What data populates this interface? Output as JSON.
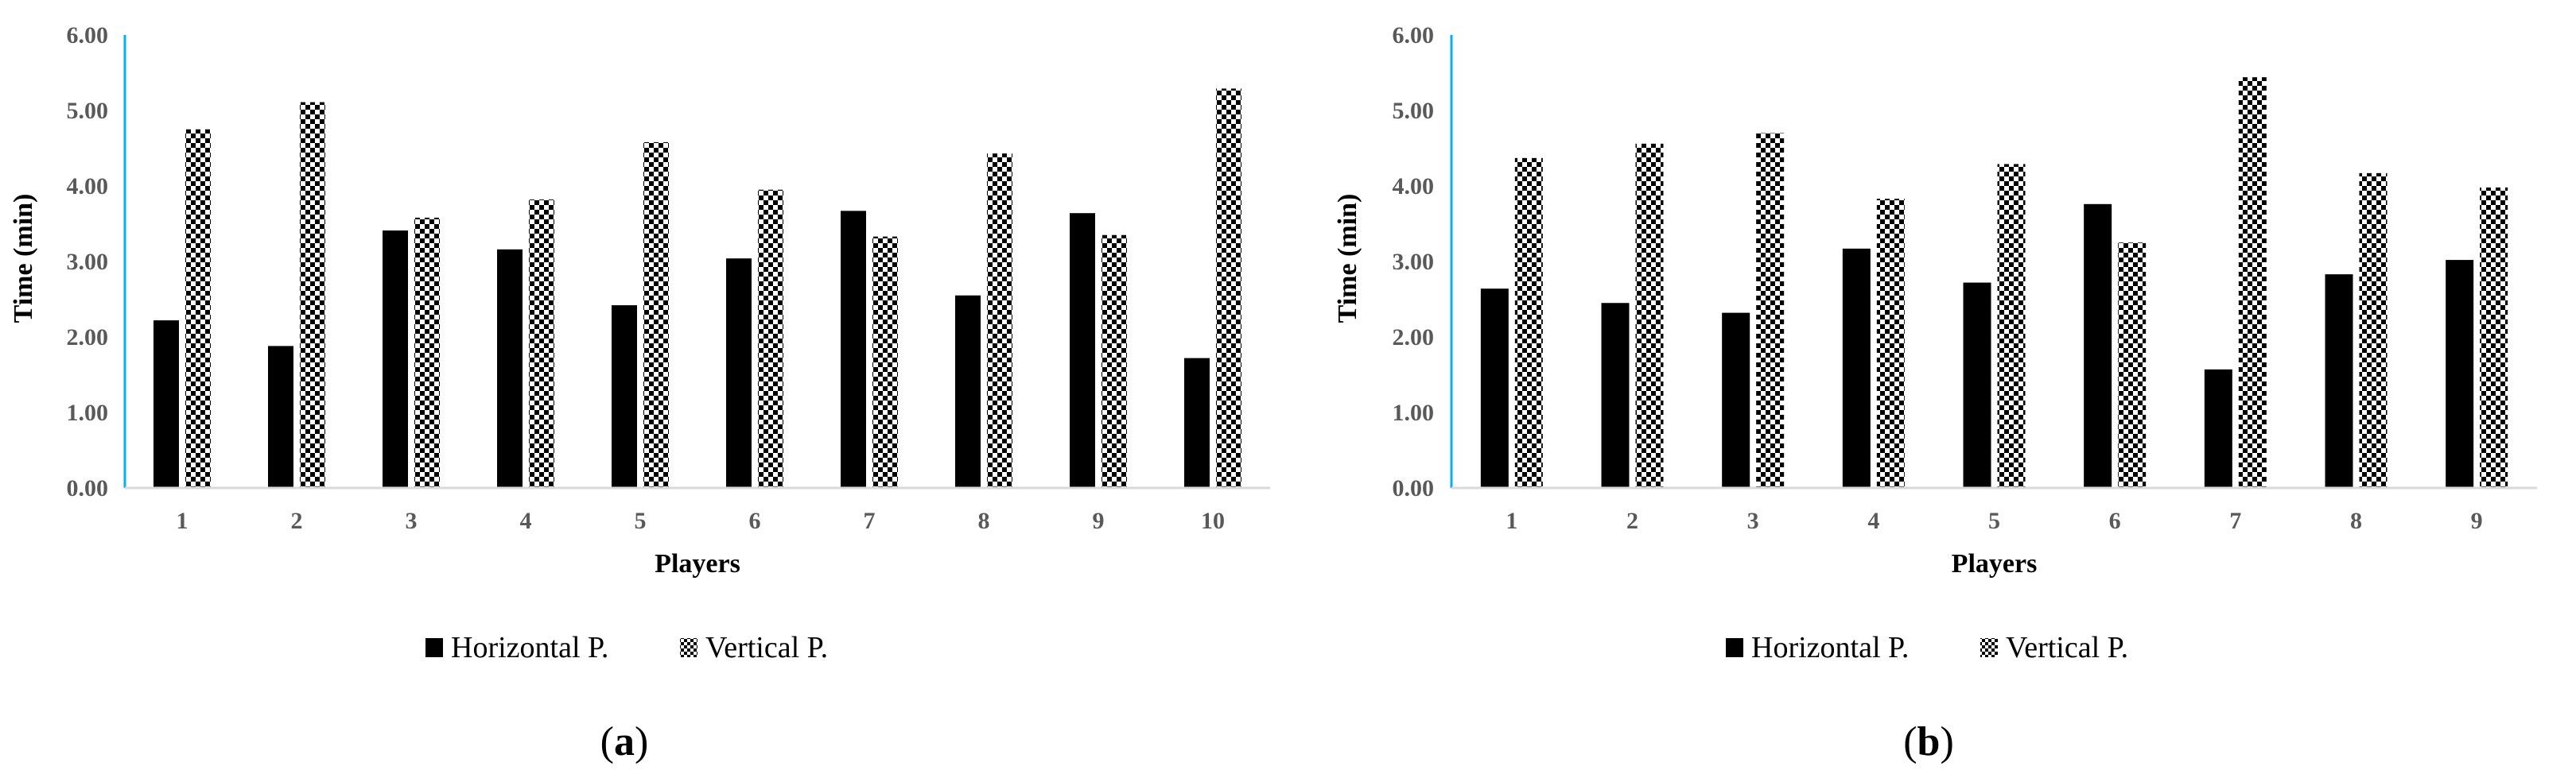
{
  "colors": {
    "horizontal": "#000000",
    "vertical_checker_dark": "#000000",
    "vertical_checker_light": "#ffffff",
    "axis_left": "#00b0f0",
    "axis_bottom": "#d9d9d9",
    "tick_text": "#595959"
  },
  "chart_data": [
    {
      "type": "bar",
      "panel_label": "(a)",
      "panel_letter": "a",
      "xlabel": "Players",
      "ylabel": "Time (min)",
      "ylim": [
        0,
        6
      ],
      "yticks": [
        "0.00",
        "1.00",
        "2.00",
        "3.00",
        "4.00",
        "5.00",
        "6.00"
      ],
      "categories": [
        "1",
        "2",
        "3",
        "4",
        "5",
        "6",
        "7",
        "8",
        "9",
        "10"
      ],
      "legend_position": "bottom",
      "grid": false,
      "series": [
        {
          "name": "Horizontal P.",
          "values": [
            2.22,
            1.88,
            3.41,
            3.16,
            2.42,
            3.04,
            3.67,
            2.55,
            3.64,
            1.72
          ]
        },
        {
          "name": "Vertical P.",
          "values": [
            4.75,
            5.11,
            3.58,
            3.82,
            4.58,
            3.95,
            3.33,
            4.43,
            3.35,
            5.29
          ]
        }
      ]
    },
    {
      "type": "bar",
      "panel_label": "(b)",
      "panel_letter": "b",
      "xlabel": "Players",
      "ylabel": "Time (min)",
      "ylim": [
        0,
        6
      ],
      "yticks": [
        "0.00",
        "1.00",
        "2.00",
        "3.00",
        "4.00",
        "5.00",
        "6.00"
      ],
      "categories": [
        "1",
        "2",
        "3",
        "4",
        "5",
        "6",
        "7",
        "8",
        "9"
      ],
      "legend_position": "bottom",
      "grid": false,
      "series": [
        {
          "name": "Horizontal P.",
          "values": [
            2.64,
            2.45,
            2.32,
            3.17,
            2.72,
            3.76,
            1.57,
            2.83,
            3.02
          ]
        },
        {
          "name": "Vertical P.",
          "values": [
            4.37,
            4.56,
            4.7,
            3.83,
            4.29,
            3.25,
            5.44,
            4.17,
            3.98
          ]
        }
      ]
    }
  ]
}
